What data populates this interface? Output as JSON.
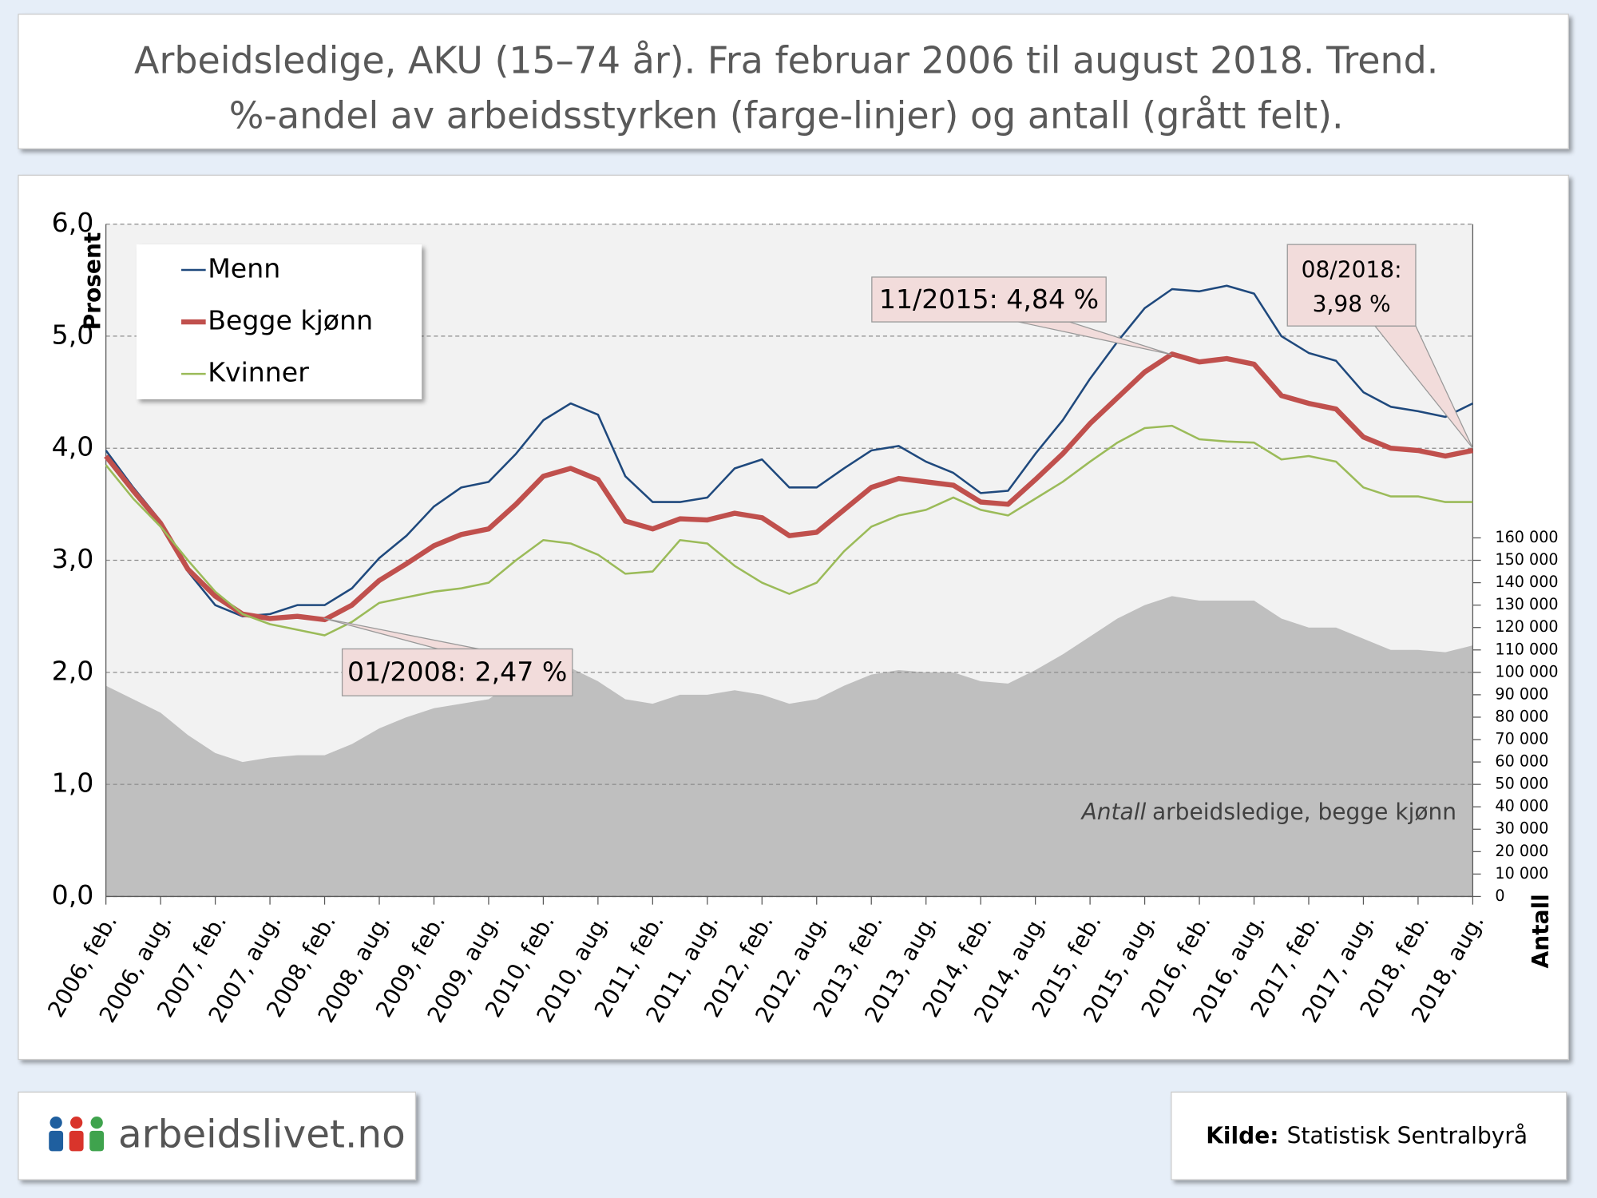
{
  "chart_data": {
    "type": "line",
    "title": [
      "Arbeidsledige, AKU (15–74 år). Fra februar 2006 til august 2018. Trend.",
      "%-andel av arbeidsstyrken (farge-linjer) og antall (grått felt)."
    ],
    "y_label": "Prosent",
    "y2_label": "Antall",
    "categories": [
      "2006, feb.",
      null,
      "2006, aug.",
      null,
      "2007, feb.",
      null,
      "2007, aug.",
      null,
      "2008, feb.",
      null,
      "2008, aug.",
      null,
      "2009, feb.",
      null,
      "2009, aug.",
      null,
      "2010, feb.",
      null,
      "2010, aug.",
      null,
      "2011, feb.",
      null,
      "2011, aug.",
      null,
      "2012, feb.",
      null,
      "2012, aug.",
      null,
      "2013, feb.",
      null,
      "2013, aug.",
      null,
      "2014, feb.",
      null,
      "2014, aug.",
      null,
      "2015, feb.",
      null,
      "2015, aug.",
      null,
      "2016, feb.",
      null,
      "2016, aug.",
      null,
      "2017, feb.",
      null,
      "2017, aug.",
      null,
      "2018, feb.",
      null,
      "2018, aug."
    ],
    "series": [
      {
        "name": "Menn",
        "color": "#1f497d",
        "width": 2,
        "values": [
          3.98,
          3.65,
          3.35,
          2.9,
          2.6,
          2.5,
          2.52,
          2.6,
          2.6,
          2.75,
          3.02,
          3.22,
          3.48,
          3.65,
          3.7,
          3.95,
          4.25,
          4.4,
          4.3,
          3.75,
          3.52,
          3.52,
          3.56,
          3.82,
          3.9,
          3.65,
          3.65,
          3.82,
          3.98,
          4.02,
          3.88,
          3.78,
          3.6,
          3.62,
          3.95,
          4.25,
          4.62,
          4.95,
          5.25,
          5.42,
          5.4,
          5.45,
          5.38,
          5.0,
          4.85,
          4.78,
          4.5,
          4.37,
          4.33,
          4.28,
          4.4
        ]
      },
      {
        "name": "Begge kjønn",
        "color": "#c0504d",
        "width": 5,
        "values": [
          3.93,
          3.62,
          3.33,
          2.92,
          2.68,
          2.52,
          2.48,
          2.5,
          2.47,
          2.6,
          2.82,
          2.97,
          3.13,
          3.23,
          3.28,
          3.5,
          3.75,
          3.82,
          3.72,
          3.35,
          3.28,
          3.37,
          3.36,
          3.42,
          3.38,
          3.22,
          3.25,
          3.45,
          3.65,
          3.73,
          3.7,
          3.67,
          3.52,
          3.5,
          3.72,
          3.95,
          4.22,
          4.45,
          4.68,
          4.84,
          4.77,
          4.8,
          4.75,
          4.47,
          4.4,
          4.35,
          4.1,
          4.0,
          3.98,
          3.93,
          3.98
        ]
      },
      {
        "name": "Kvinner",
        "color": "#9bbb59",
        "width": 2,
        "values": [
          3.85,
          3.55,
          3.3,
          3.0,
          2.72,
          2.52,
          2.43,
          2.38,
          2.33,
          2.45,
          2.62,
          2.67,
          2.72,
          2.75,
          2.8,
          3.0,
          3.18,
          3.15,
          3.05,
          2.88,
          2.9,
          3.18,
          3.15,
          2.95,
          2.8,
          2.7,
          2.8,
          3.08,
          3.3,
          3.4,
          3.45,
          3.56,
          3.45,
          3.4,
          3.55,
          3.7,
          3.88,
          4.05,
          4.18,
          4.2,
          4.08,
          4.06,
          4.05,
          3.9,
          3.93,
          3.88,
          3.65,
          3.57,
          3.57,
          3.52,
          3.52
        ]
      },
      {
        "type": "area",
        "axis": "y2",
        "color": "#bfbfbf",
        "values": [
          94000,
          88000,
          82000,
          72000,
          64000,
          60000,
          62000,
          63000,
          63000,
          68000,
          75000,
          80000,
          84000,
          86000,
          88000,
          96000,
          102000,
          102000,
          96000,
          88000,
          86000,
          90000,
          90000,
          92000,
          90000,
          86000,
          88000,
          94000,
          99000,
          101000,
          100000,
          100000,
          96000,
          95000,
          101000,
          108000,
          116000,
          124000,
          130000,
          134000,
          132000,
          132000,
          132000,
          124000,
          120000,
          120000,
          115000,
          110000,
          110000,
          109000,
          112000
        ]
      }
    ],
    "ylim": [
      0,
      6
    ],
    "yticks": [
      {
        "value": 0,
        "label": "0,0"
      },
      {
        "value": 1,
        "label": "1,0"
      },
      {
        "value": 2,
        "label": "2,0"
      },
      {
        "value": 3,
        "label": "3,0"
      },
      {
        "value": 4,
        "label": "4,0"
      },
      {
        "value": 5,
        "label": "5,0"
      },
      {
        "value": 6,
        "label": "6,0"
      }
    ],
    "y2lim": [
      0,
      300000
    ],
    "y2ticks": [
      0,
      {
        "value": 10000,
        "label": "10 000"
      },
      {
        "value": 20000,
        "label": "20 000"
      },
      {
        "value": 30000,
        "label": "30 000"
      },
      {
        "value": 40000,
        "label": "40 000"
      },
      {
        "value": 50000,
        "label": "50 000"
      },
      {
        "value": 60000,
        "label": "60 000"
      },
      {
        "value": 70000,
        "label": "70 000"
      },
      {
        "value": 80000,
        "label": "80 000"
      },
      {
        "value": 90000,
        "label": "90 000"
      },
      {
        "value": 100000,
        "label": "100 000"
      },
      {
        "value": 110000,
        "label": "110 000"
      },
      {
        "value": 120000,
        "label": "120 000"
      },
      {
        "value": 130000,
        "label": "130 000"
      },
      {
        "value": 140000,
        "label": "140 000"
      },
      {
        "value": 150000,
        "label": "150 000"
      },
      {
        "value": 160000,
        "label": "160 000"
      }
    ],
    "grid": true,
    "legend": "top-left",
    "annotations": {
      "min_2008": "01/2008: 2,47 %",
      "peak_2015": "11/2015: 4,84 %",
      "last_2018": [
        "08/2018:",
        "3,98 %"
      ],
      "area_label": [
        "Antall",
        "arbeidsledige,  begge kjønn"
      ]
    },
    "logo": "arbeidslivet.no",
    "source": {
      "label": "Kilde:",
      "text": "Statistisk  Sentralbyrå"
    }
  }
}
